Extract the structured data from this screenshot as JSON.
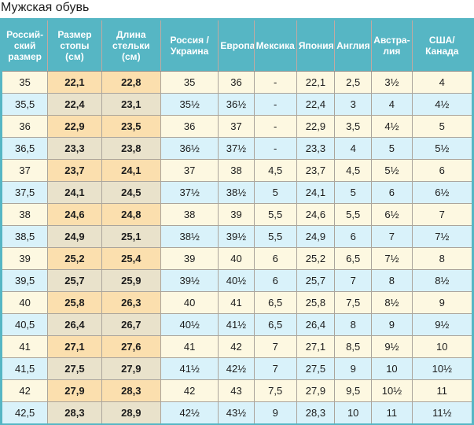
{
  "title": "Мужская обувь",
  "colors": {
    "header_bg": "#56b6c4",
    "outer_border": "#56b6c4",
    "header_text": "#ffffff",
    "row_cream_bg": "#fdf8e1",
    "row_blue_bg": "#d9f2fa",
    "foot_cell_cream_bg": "#fbdfae",
    "foot_cell_blue_bg": "#e9e2cb",
    "cell_border": "#aba59c",
    "header_separator": "#c2a9a1",
    "body_text": "#1c1c1c"
  },
  "chart_data": {
    "type": "table",
    "title": "Мужская обувь",
    "columns": [
      "Россий-ский размер",
      "Размер стопы (см)",
      "Длина стельки (см)",
      "Россия / Украина",
      "Европа",
      "Мексика",
      "Япония",
      "Англия",
      "Австра-лия",
      "США/Канада"
    ],
    "bold_column_indexes": [
      1,
      2
    ],
    "rows": [
      [
        "35",
        "22,1",
        "22,8",
        "35",
        "36",
        "-",
        "22,1",
        "2,5",
        "3½",
        "4"
      ],
      [
        "35,5",
        "22,4",
        "23,1",
        "35½",
        "36½",
        "-",
        "22,4",
        "3",
        "4",
        "4½"
      ],
      [
        "36",
        "22,9",
        "23,5",
        "36",
        "37",
        "-",
        "22,9",
        "3,5",
        "4½",
        "5"
      ],
      [
        "36,5",
        "23,3",
        "23,8",
        "36½",
        "37½",
        "-",
        "23,3",
        "4",
        "5",
        "5½"
      ],
      [
        "37",
        "23,7",
        "24,1",
        "37",
        "38",
        "4,5",
        "23,7",
        "4,5",
        "5½",
        "6"
      ],
      [
        "37,5",
        "24,1",
        "24,5",
        "37½",
        "38½",
        "5",
        "24,1",
        "5",
        "6",
        "6½"
      ],
      [
        "38",
        "24,6",
        "24,8",
        "38",
        "39",
        "5,5",
        "24,6",
        "5,5",
        "6½",
        "7"
      ],
      [
        "38,5",
        "24,9",
        "25,1",
        "38½",
        "39½",
        "5,5",
        "24,9",
        "6",
        "7",
        "7½"
      ],
      [
        "39",
        "25,2",
        "25,4",
        "39",
        "40",
        "6",
        "25,2",
        "6,5",
        "7½",
        "8"
      ],
      [
        "39,5",
        "25,7",
        "25,9",
        "39½",
        "40½",
        "6",
        "25,7",
        "7",
        "8",
        "8½"
      ],
      [
        "40",
        "25,8",
        "26,3",
        "40",
        "41",
        "6,5",
        "25,8",
        "7,5",
        "8½",
        "9"
      ],
      [
        "40,5",
        "26,4",
        "26,7",
        "40½",
        "41½",
        "6,5",
        "26,4",
        "8",
        "9",
        "9½"
      ],
      [
        "41",
        "27,1",
        "27,6",
        "41",
        "42",
        "7",
        "27,1",
        "8,5",
        "9½",
        "10"
      ],
      [
        "41,5",
        "27,5",
        "27,9",
        "41½",
        "42½",
        "7",
        "27,5",
        "9",
        "10",
        "10½"
      ],
      [
        "42",
        "27,9",
        "28,3",
        "42",
        "43",
        "7,5",
        "27,9",
        "9,5",
        "10½",
        "11"
      ],
      [
        "42,5",
        "28,3",
        "28,9",
        "42½",
        "43½",
        "9",
        "28,3",
        "10",
        "11",
        "11½"
      ]
    ]
  }
}
